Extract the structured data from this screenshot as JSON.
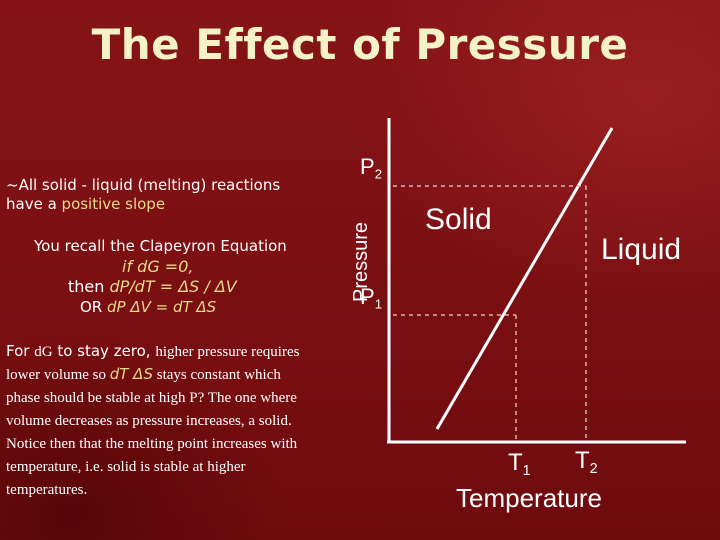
{
  "title": "The Effect of Pressure",
  "left": {
    "line1": "~All solid - liquid (melting) reactions",
    "line2_prefix": "have a ",
    "line2_highlight": "positive slope",
    "clapeyron": "You recall the Clapeyron Equation",
    "cond": "if dG =0,",
    "then_prefix": "then ",
    "then_expr": "dP/dT = ΔS / ΔV",
    "or_prefix": "OR ",
    "or_expr": "dP ΔV = dT ΔS",
    "para_prefix": "For ",
    "para_dg": "d",
    "para_g": "G",
    "para_mid": " to stay zero, ",
    "para_rest1": "higher pressure requires lower volume so ",
    "para_expr": "dT ΔS",
    "para_rest2": " stays constant which phase should be stable at high P? The one where volume decreases as pressure increases, a solid.  Notice then that the melting  point increases with temperature, i.e. solid is stable at higher temperatures."
  },
  "diagram": {
    "ylabel": "Pressure",
    "xlabel": "Temperature",
    "p2": "P",
    "p2_sub": "2",
    "p1": "P",
    "p1_sub": "1",
    "t1": "T",
    "t1_sub": "1",
    "t2": "T",
    "t2_sub": "2",
    "solid": "Solid",
    "liquid": "Liquid"
  }
}
